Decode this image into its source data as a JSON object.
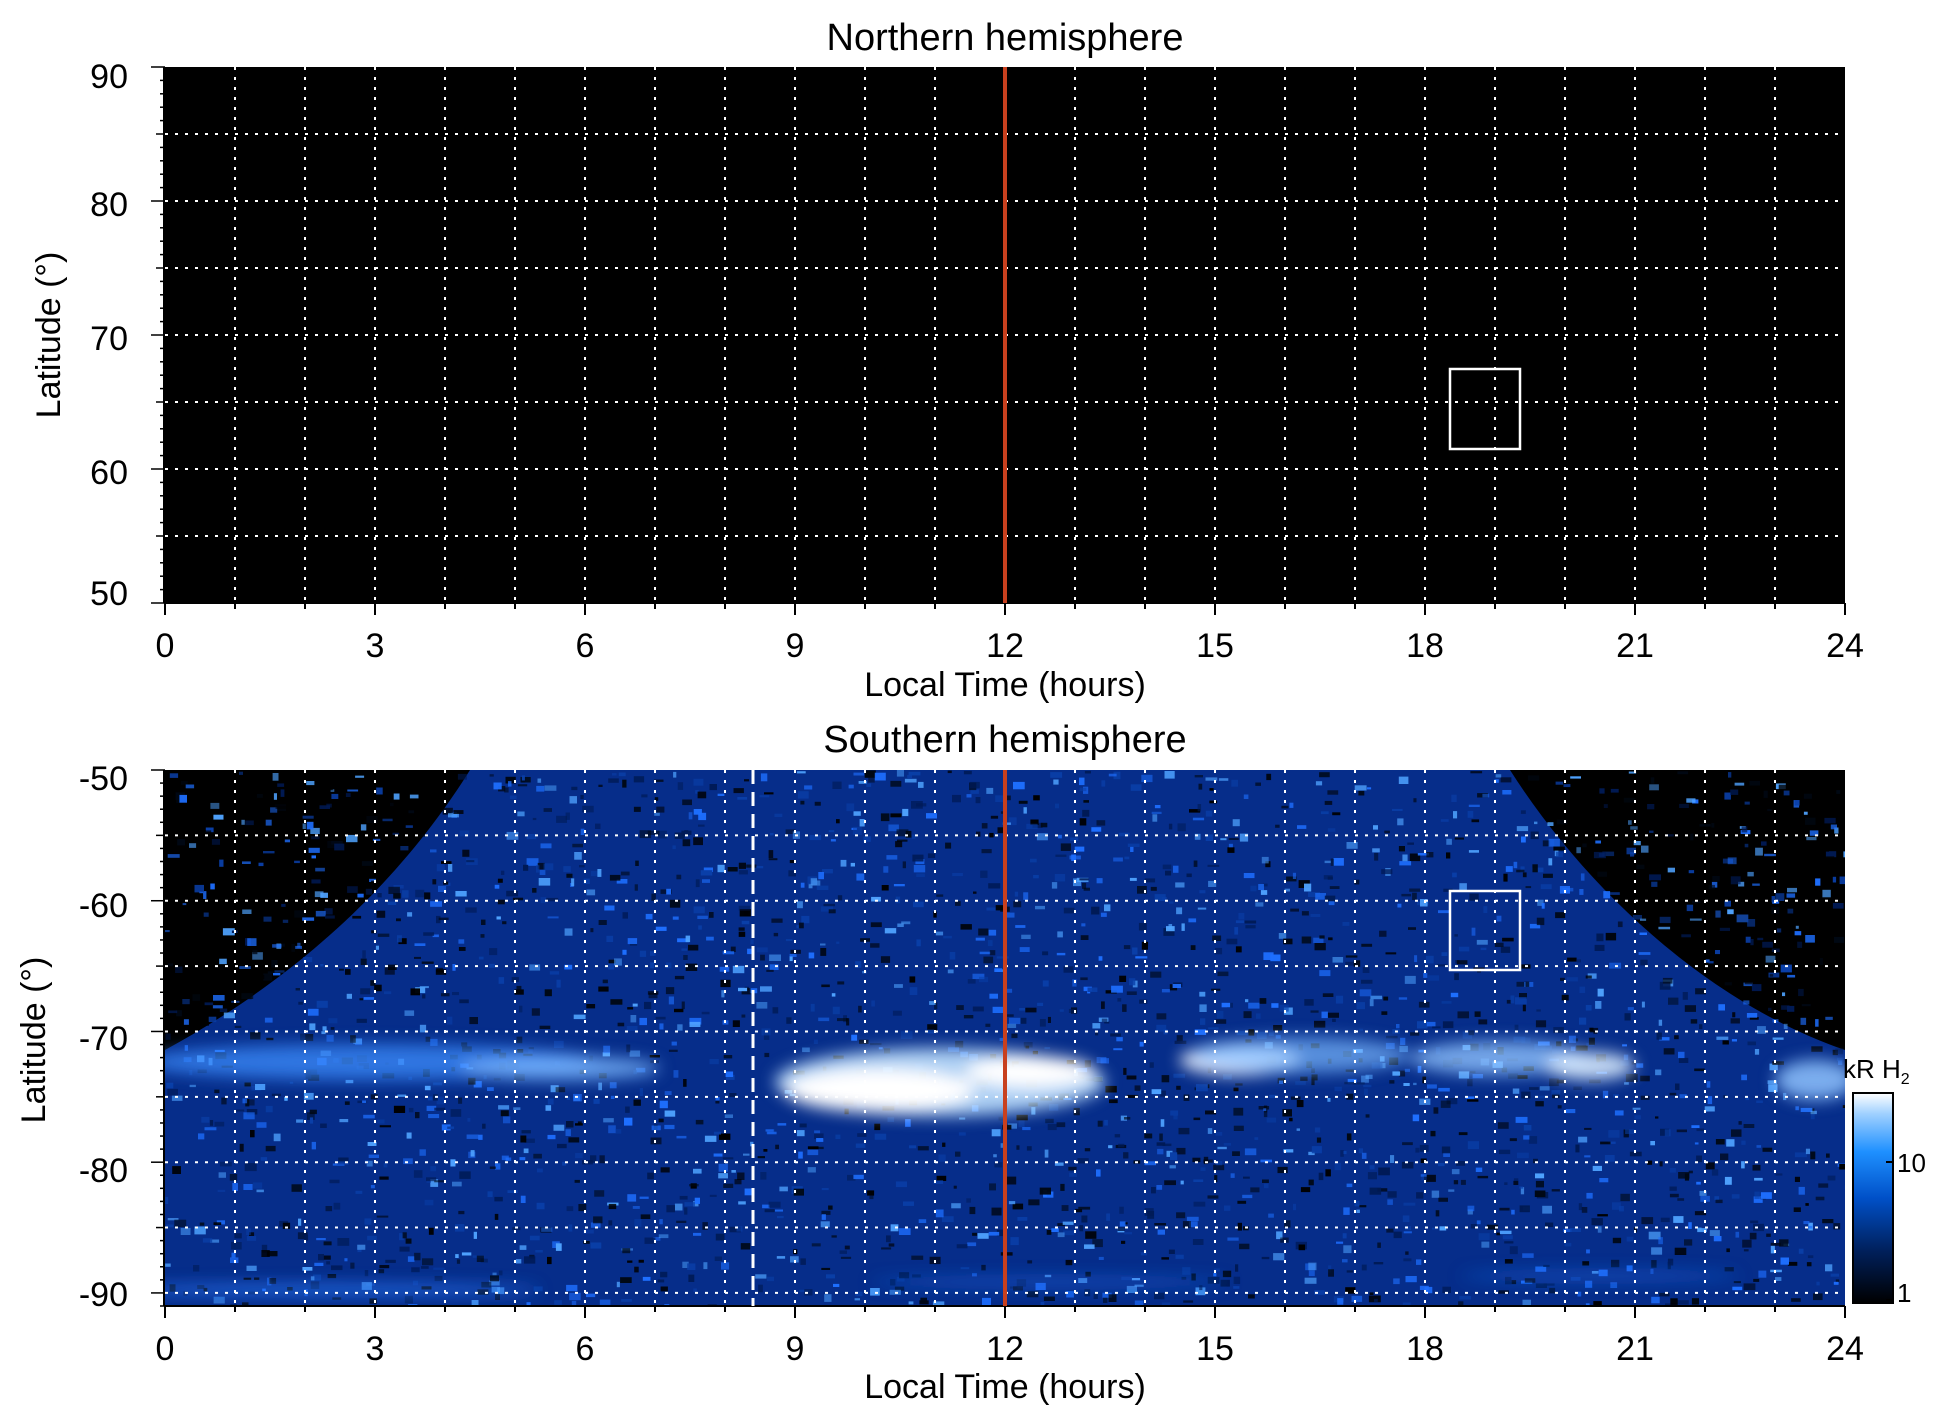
{
  "chart_data": [
    {
      "type": "heatmap",
      "title": "Northern hemisphere",
      "xlabel": "Local Time (hours)",
      "ylabel": "Latitude (°)",
      "xlim": [
        0,
        24
      ],
      "ylim": [
        50,
        90
      ],
      "x_ticks": [
        "0",
        "3",
        "6",
        "9",
        "12",
        "15",
        "18",
        "21",
        "24"
      ],
      "y_ticks": [
        "50",
        "60",
        "70",
        "80",
        "90"
      ],
      "grid": true,
      "noon_line": {
        "x": 12,
        "color": "#c8401e"
      },
      "box": {
        "x": [
          18.4,
          19.4
        ],
        "y": [
          61.5,
          67.5
        ]
      },
      "emission": "none (no coverage, all black)"
    },
    {
      "type": "heatmap",
      "title": "Southern hemisphere",
      "xlabel": "Local Time (hours)",
      "ylabel": "Latitude (°)",
      "xlim": [
        0,
        24
      ],
      "ylim": [
        -91,
        -50
      ],
      "x_ticks": [
        "0",
        "3",
        "6",
        "9",
        "12",
        "15",
        "18",
        "21",
        "24"
      ],
      "y_ticks": [
        "-50",
        "-60",
        "-70",
        "-80",
        "-90"
      ],
      "grid": true,
      "noon_line": {
        "x": 12,
        "color": "#c8401e"
      },
      "dashed_line": {
        "x": 8.4,
        "color": "#ffffff"
      },
      "box": {
        "x": [
          18.4,
          19.4
        ],
        "y": [
          -65,
          -59
        ]
      },
      "auroral_oval": [
        {
          "lt_start": 0,
          "lt_end": 6,
          "lat": -72.5,
          "intensity": "moderate"
        },
        {
          "lt_start": 8.8,
          "lt_end": 13.2,
          "lat": -73.5,
          "intensity": "bright (>20 kR)"
        },
        {
          "lt_start": 14.8,
          "lt_end": 16.5,
          "lat": -72.0,
          "intensity": "bright"
        },
        {
          "lt_start": 18.5,
          "lt_end": 21.0,
          "lat": -72.5,
          "intensity": "moderate-bright"
        },
        {
          "lt_start": 23.0,
          "lt_end": 24.0,
          "lat": -73.5,
          "intensity": "moderate"
        }
      ]
    }
  ],
  "colorbar": {
    "label": "kR H",
    "label_subscript": "2",
    "scale": "log",
    "ticks": [
      "1",
      "10"
    ],
    "colors": [
      "#000000",
      "#00205c",
      "#0050c8",
      "#1e90ff",
      "#9fd0ff",
      "#ffffff"
    ]
  }
}
